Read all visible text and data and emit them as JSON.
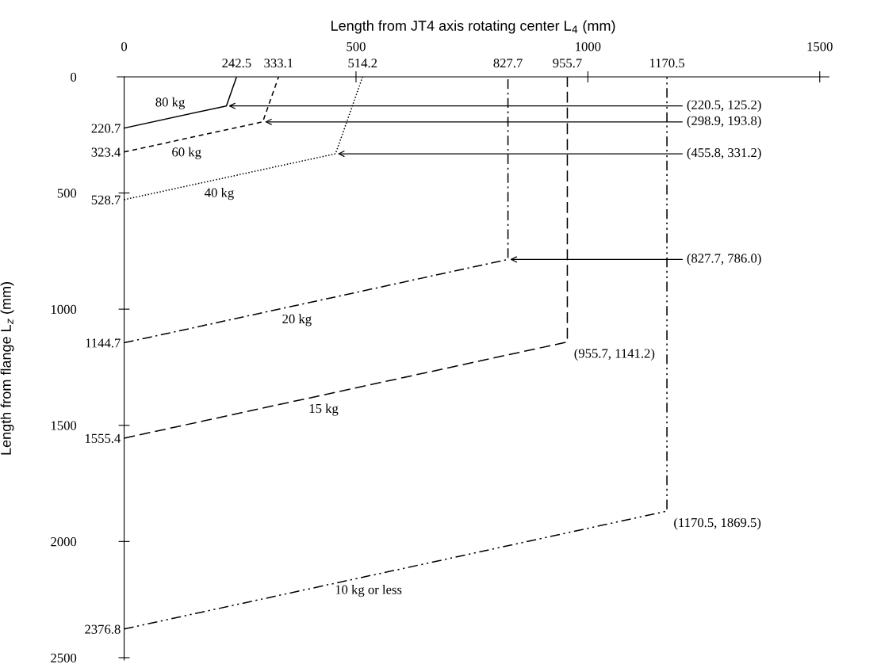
{
  "chart_data": {
    "type": "line",
    "xlabel": "Length from JT4 axis rotating center L$_{4}$ (mm)",
    "ylabel": "Length from flange L$_{z}$ (mm)",
    "xlim": [
      -15,
      1520
    ],
    "ylim": [
      2510,
      0
    ],
    "xticks": [
      0,
      500,
      1000,
      1500
    ],
    "yticks": [
      0,
      500,
      1000,
      1500,
      2000,
      2500
    ],
    "x2lim": [
      -15,
      1520
    ],
    "y2lim": [
      2510,
      0
    ],
    "x2ticks": [
      242.5,
      333.1,
      514.2,
      827.7,
      955.7,
      1170.5
    ],
    "y2ticks": [
      220.7,
      323.4,
      528.7,
      1144.7,
      1555.4,
      2376.8
    ],
    "grid": false,
    "legend": false,
    "marker": "none",
    "series": [
      {
        "name": "80 kg",
        "color": "#000000",
        "line_style": "solid",
        "x": [
          0,
          220.5,
          242.5
        ],
        "values": [
          220.7,
          125.2,
          0
        ]
      },
      {
        "name": "60 kg",
        "color": "#000000",
        "line_style": "dashed",
        "x": [
          0,
          298.9,
          333.1
        ],
        "values": [
          323.4,
          193.8,
          0
        ]
      },
      {
        "name": "40 kg",
        "color": "#000000",
        "line_style": "dotted",
        "x": [
          0,
          455.8,
          514.2
        ],
        "values": [
          528.7,
          331.2,
          0
        ]
      },
      {
        "name": "20 kg",
        "color": "#000000",
        "line_style": "dashdot",
        "x": [
          0,
          827.7,
          827.7
        ],
        "values": [
          1144.7,
          786.0,
          0
        ]
      },
      {
        "name": "15 kg",
        "color": "#000000",
        "line_style": "longdash",
        "x": [
          0,
          955.7,
          955.7
        ],
        "values": [
          1555.4,
          1141.2,
          0
        ]
      },
      {
        "name": "10 kg or less",
        "color": "#000000",
        "line_style": "dashdotdot",
        "x": [
          0,
          1170.5,
          1170.5
        ],
        "values": [
          2376.8,
          1869.5,
          0
        ]
      }
    ],
    "annotations": [
      {
        "text": "(220.5, 125.2)",
        "x": 220.5,
        "y": 125.2
      },
      {
        "text": "(298.9, 193.8)",
        "x": 298.9,
        "y": 193.8
      },
      {
        "text": "(455.8, 331.2)",
        "x": 455.8,
        "y": 331.2
      },
      {
        "text": "(827.7, 786.0)",
        "x": 827.7,
        "y": 786.0
      },
      {
        "text": "(955.7, 1141.2)",
        "x": 955.7,
        "y": 1141.2
      },
      {
        "text": "(1170.5, 1869.5)",
        "x": 1170.5,
        "y": 1869.5
      }
    ]
  }
}
